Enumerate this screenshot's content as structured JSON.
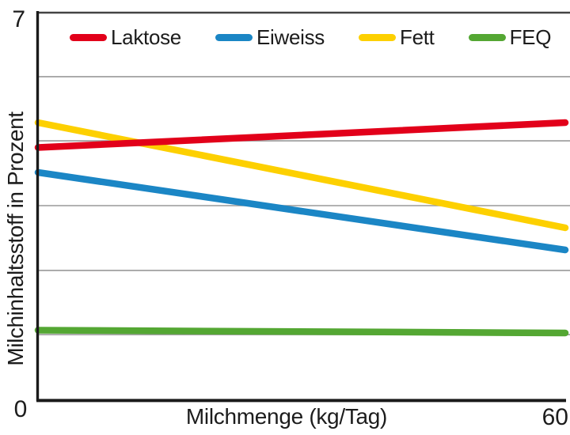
{
  "chart_data": {
    "type": "line",
    "title": "",
    "xlabel": "Milchmenge (kg/Tag)",
    "ylabel": "Milchinhaltsstoff in Prozent",
    "xlim": [
      0,
      60
    ],
    "ylim": [
      0,
      7
    ],
    "grid": "horizontal",
    "gridline_values": [
      5.83,
      4.67,
      3.5,
      2.33,
      1.17
    ],
    "legend_position": "top-inside",
    "x": [
      0,
      60
    ],
    "series": [
      {
        "name": "Laktose",
        "color": "#e2001a",
        "values": [
          4.55,
          5.0
        ]
      },
      {
        "name": "Eiweiss",
        "color": "#1b86c5",
        "values": [
          4.1,
          2.7
        ]
      },
      {
        "name": "Fett",
        "color": "#fdd000",
        "values": [
          5.0,
          3.1
        ]
      },
      {
        "name": "FEQ",
        "color": "#54a733",
        "values": [
          1.25,
          1.2
        ]
      }
    ]
  },
  "ticks": {
    "y_top": "7",
    "origin": "0",
    "x_right": "60"
  },
  "colors": {
    "axis": "#1a1a1a",
    "grid": "#999999",
    "top_border": "#444444",
    "text": "#1c1c1c"
  }
}
